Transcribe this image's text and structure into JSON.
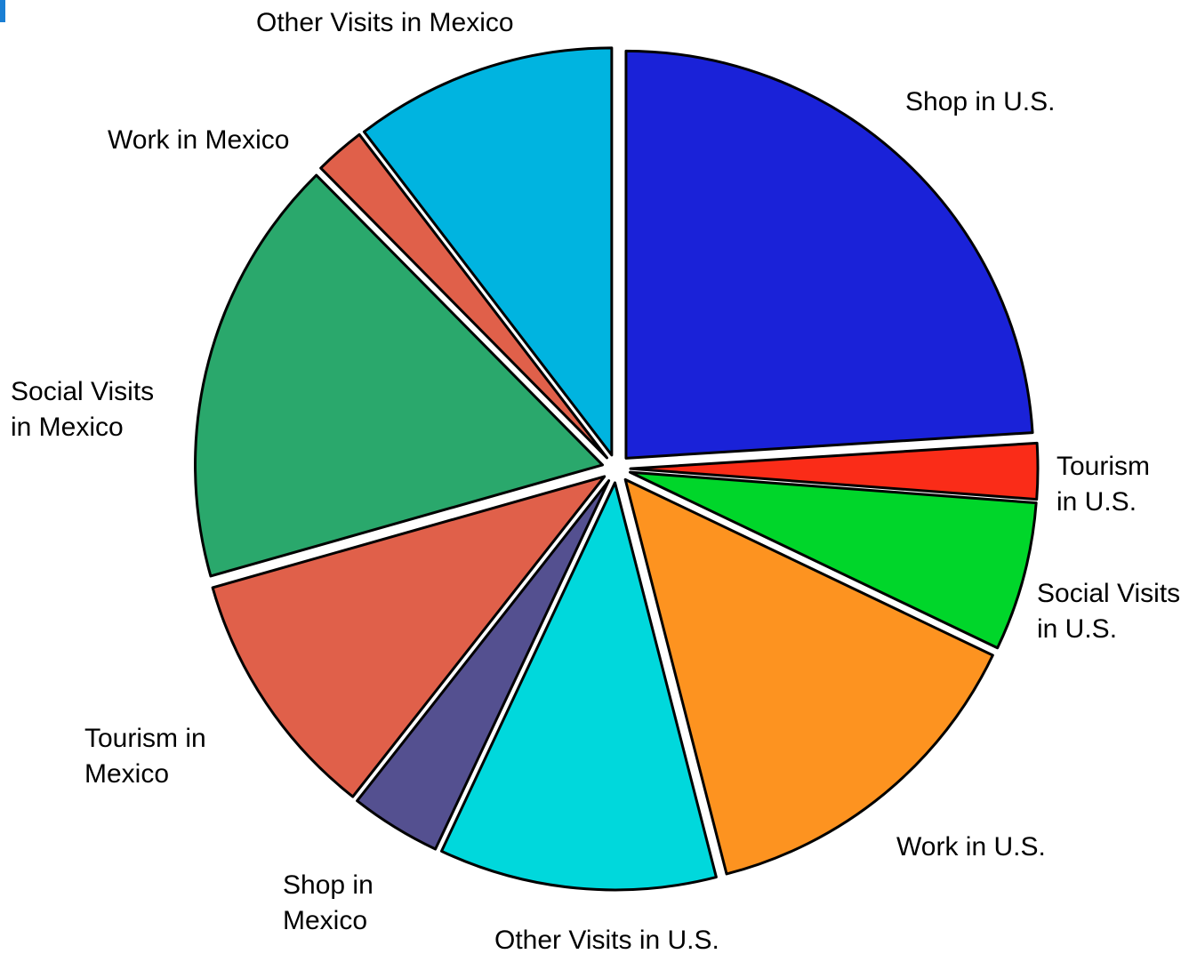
{
  "chart_data": {
    "type": "pie",
    "categories": [
      "Shop in U.S.",
      "Tourism in U.S.",
      "Social Visits in U.S.",
      "Work in U.S.",
      "Other Visits in U.S.",
      "Shop in Mexico",
      "Tourism in Mexico",
      "Social Visits in Mexico",
      "Work in Mexico",
      "Other Visits in Mexico"
    ],
    "values": [
      24,
      2.2,
      5.9,
      13.9,
      11,
      3.6,
      10,
      17,
      2,
      10.4
    ],
    "colors": [
      "#1a22d8",
      "#fa2c18",
      "#00d62a",
      "#fd9320",
      "#00d8dc",
      "#545090",
      "#e0604a",
      "#2aa86c",
      "#e0604a",
      "#00b4e0"
    ]
  }
}
